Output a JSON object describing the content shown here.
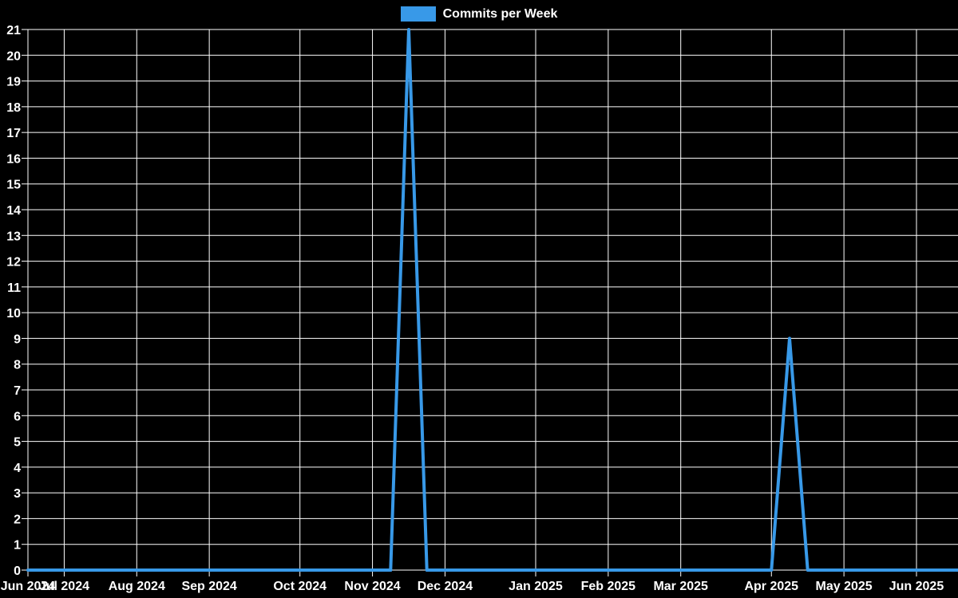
{
  "chart_data": {
    "type": "line",
    "title": "Commits per Week",
    "grid": true,
    "legend": {
      "label": "Commits per Week",
      "position": "top-center",
      "swatch_color": "#3899E8"
    },
    "colors": {
      "background": "#000000",
      "grid": "#ffffff",
      "axis": "#ffffff",
      "text": "#ffffff",
      "line": "#3899E8"
    },
    "y_axis": {
      "min": 0,
      "max": 21,
      "tick_interval": 1,
      "tick_labels": [
        "0",
        "1",
        "2",
        "3",
        "4",
        "5",
        "6",
        "7",
        "8",
        "9",
        "10",
        "11",
        "12",
        "13",
        "14",
        "15",
        "16",
        "17",
        "18",
        "19",
        "20",
        "21"
      ]
    },
    "x_axis": {
      "unit": "week",
      "tick_labels": [
        {
          "label": "Jun 2024",
          "week": 0
        },
        {
          "label": "Jul 2024",
          "week": 2
        },
        {
          "label": "Aug 2024",
          "week": 6
        },
        {
          "label": "Sep 2024",
          "week": 10
        },
        {
          "label": "Oct 2024",
          "week": 15
        },
        {
          "label": "Nov 2024",
          "week": 19
        },
        {
          "label": "Dec 2024",
          "week": 23
        },
        {
          "label": "Jan 2025",
          "week": 28
        },
        {
          "label": "Feb 2025",
          "week": 32
        },
        {
          "label": "Mar 2025",
          "week": 36
        },
        {
          "label": "Apr 2025",
          "week": 41
        },
        {
          "label": "May 2025",
          "week": 45
        },
        {
          "label": "Jun 2025",
          "week": 49
        }
      ]
    },
    "series": [
      {
        "name": "Commits per Week",
        "color": "#3899E8",
        "values": [
          0,
          0,
          0,
          0,
          0,
          0,
          0,
          0,
          0,
          0,
          0,
          0,
          0,
          0,
          0,
          0,
          0,
          0,
          0,
          0,
          0,
          21,
          0,
          0,
          0,
          0,
          0,
          0,
          0,
          0,
          0,
          0,
          0,
          0,
          0,
          0,
          0,
          0,
          0,
          0,
          0,
          0,
          9,
          0,
          0,
          0,
          0,
          0,
          0,
          0,
          0,
          0
        ]
      }
    ],
    "notable_points": [
      {
        "week_index": 21,
        "value": 21,
        "near_label": "Nov 2024"
      },
      {
        "week_index": 42,
        "value": 9,
        "near_label": "Apr 2025"
      }
    ]
  }
}
